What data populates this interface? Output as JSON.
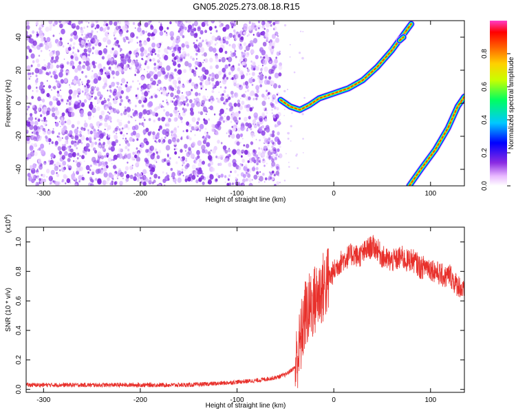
{
  "title": "GN05.2025.273.08.18.R15",
  "chart_data": [
    {
      "type": "heatmap",
      "xlabel": "Height of straight line (km)",
      "ylabel": "Frequency (Hz)",
      "xlim": [
        -318,
        135
      ],
      "ylim": [
        -50,
        50
      ],
      "x_ticks": [
        "-300",
        "-200",
        "-100",
        "0",
        "100"
      ],
      "y_ticks": [
        "-40",
        "-20",
        "0",
        "20",
        "40"
      ],
      "colorbar": {
        "label": "Normalized spectral amplitude",
        "range": [
          0,
          1
        ],
        "ticks": [
          "0.0",
          "0.2",
          "0.4",
          "0.6",
          "0.8"
        ],
        "colors": [
          "#ffffff",
          "#e8b8ff",
          "#8a2be2",
          "#0000ff",
          "#00c8ff",
          "#00ff60",
          "#c8ff00",
          "#ffd000",
          "#ff6000",
          "#ff0000",
          "#ff3cc8"
        ]
      },
      "noise_region_x": [
        -318,
        -55
      ],
      "traces": [
        {
          "points": [
            [
              -55,
              2
            ],
            [
              -45,
              -2
            ],
            [
              -35,
              -4
            ],
            [
              -25,
              -1
            ],
            [
              -15,
              3
            ],
            [
              0,
              6
            ],
            [
              15,
              9
            ],
            [
              30,
              14
            ],
            [
              45,
              22
            ],
            [
              60,
              32
            ],
            [
              70,
              40
            ],
            [
              80,
              48
            ]
          ]
        },
        {
          "points": [
            [
              68,
              38
            ],
            [
              72,
              40
            ]
          ]
        },
        {
          "points": [
            [
              78,
              -50
            ],
            [
              90,
              -40
            ],
            [
              105,
              -28
            ],
            [
              118,
              -15
            ],
            [
              128,
              -2
            ],
            [
              135,
              4
            ]
          ]
        }
      ]
    },
    {
      "type": "line",
      "xlabel": "Height of straight line (km)",
      "ylabel": "SNR (10 * v/v)",
      "y_multiplier": "(x10",
      "y_multiplier_exp": "4",
      "xlim": [
        -318,
        135
      ],
      "ylim": [
        -0.02,
        1.1
      ],
      "x_ticks": [
        "-300",
        "-200",
        "-100",
        "0",
        "100"
      ],
      "y_ticks": [
        "0.0",
        "0.2",
        "0.4",
        "0.6",
        "0.8",
        "1.0"
      ],
      "line_color": "#e8302b",
      "series": [
        {
          "x": [
            -318,
            -250,
            -200,
            -150,
            -120,
            -100,
            -80,
            -60,
            -50,
            -40,
            -35,
            -30,
            -25,
            -20,
            -15,
            -10,
            -5,
            0,
            5,
            10,
            15,
            20,
            25,
            30,
            35,
            40,
            45,
            50,
            55,
            60,
            65,
            70,
            75,
            80,
            85,
            90,
            95,
            100,
            105,
            110,
            115,
            120,
            125,
            130,
            135
          ],
          "values": [
            0.03,
            0.03,
            0.03,
            0.03,
            0.04,
            0.05,
            0.06,
            0.08,
            0.1,
            0.15,
            0.3,
            0.5,
            0.55,
            0.6,
            0.65,
            0.7,
            0.75,
            0.8,
            0.85,
            0.88,
            0.9,
            0.92,
            0.9,
            0.92,
            0.95,
            0.97,
            0.95,
            0.9,
            0.88,
            0.87,
            0.88,
            0.9,
            0.87,
            0.88,
            0.86,
            0.82,
            0.84,
            0.82,
            0.8,
            0.78,
            0.76,
            0.78,
            0.72,
            0.7,
            0.65
          ]
        }
      ]
    }
  ]
}
